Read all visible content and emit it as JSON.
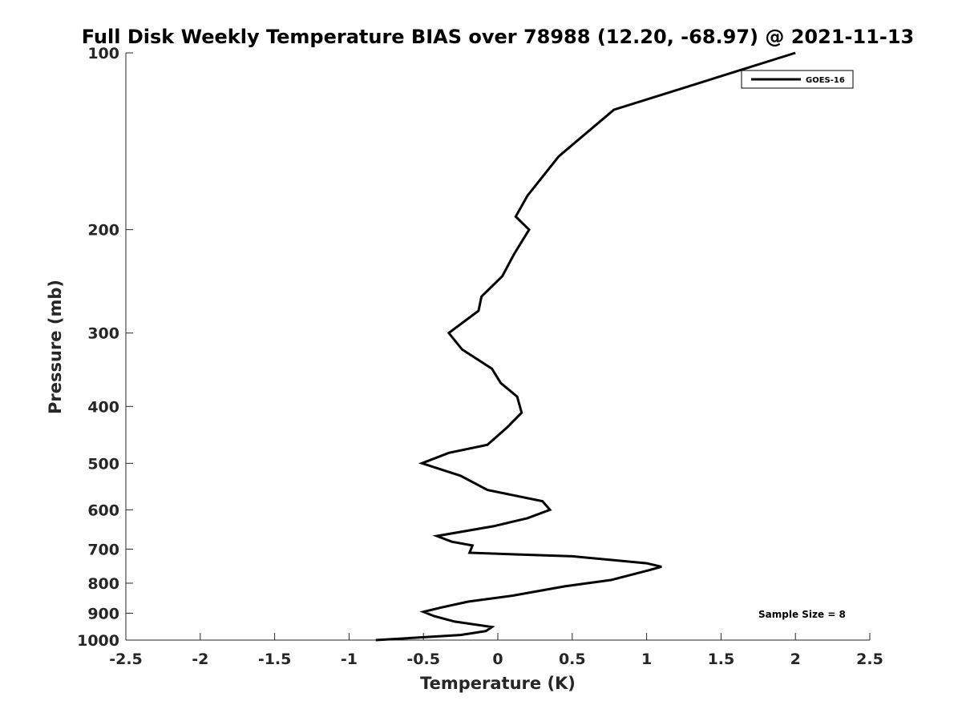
{
  "chart_data": {
    "type": "line",
    "title": "Full Disk Weekly Temperature BIAS over 78988 (12.20, -68.97) @ 2021-11-13",
    "xlabel": "Temperature (K)",
    "ylabel": "Pressure (mb)",
    "xlim": [
      -2.5,
      2.5
    ],
    "ylim": [
      1000,
      100
    ],
    "yscale": "log",
    "y_reversed": true,
    "x_ticks": [
      "-2.5",
      "-2",
      "-1.5",
      "-1",
      "-0.5",
      "0",
      "0.5",
      "1",
      "1.5",
      "2",
      "2.5"
    ],
    "y_ticks": [
      "100",
      "200",
      "300",
      "400",
      "500",
      "600",
      "700",
      "800",
      "900",
      "1000"
    ],
    "grid": false,
    "legend_position": "top-right",
    "annotation": "Sample Size = 8",
    "series": [
      {
        "name": "GOES-16",
        "color": "#000000",
        "points": [
          [
            2.0,
            100
          ],
          [
            0.78,
            125
          ],
          [
            0.41,
            150
          ],
          [
            0.2,
            175
          ],
          [
            0.12,
            190
          ],
          [
            0.21,
            200
          ],
          [
            0.11,
            220
          ],
          [
            0.03,
            240
          ],
          [
            -0.11,
            260
          ],
          [
            -0.13,
            275
          ],
          [
            -0.33,
            300
          ],
          [
            -0.24,
            320
          ],
          [
            -0.04,
            345
          ],
          [
            0.02,
            365
          ],
          [
            0.13,
            385
          ],
          [
            0.16,
            410
          ],
          [
            0.06,
            435
          ],
          [
            -0.07,
            465
          ],
          [
            -0.33,
            480
          ],
          [
            -0.51,
            500
          ],
          [
            -0.25,
            525
          ],
          [
            -0.07,
            555
          ],
          [
            0.3,
            580
          ],
          [
            0.35,
            600
          ],
          [
            0.2,
            620
          ],
          [
            -0.03,
            640
          ],
          [
            -0.41,
            665
          ],
          [
            -0.31,
            680
          ],
          [
            -0.17,
            690
          ],
          [
            -0.19,
            710
          ],
          [
            0.5,
            720
          ],
          [
            1.0,
            740
          ],
          [
            1.1,
            750
          ],
          [
            1.02,
            760
          ],
          [
            0.76,
            790
          ],
          [
            0.45,
            810
          ],
          [
            0.1,
            840
          ],
          [
            -0.2,
            860
          ],
          [
            -0.38,
            880
          ],
          [
            -0.5,
            895
          ],
          [
            -0.43,
            910
          ],
          [
            -0.29,
            930
          ],
          [
            -0.04,
            950
          ],
          [
            -0.08,
            965
          ],
          [
            -0.25,
            980
          ],
          [
            -0.82,
            1000
          ]
        ]
      }
    ]
  }
}
